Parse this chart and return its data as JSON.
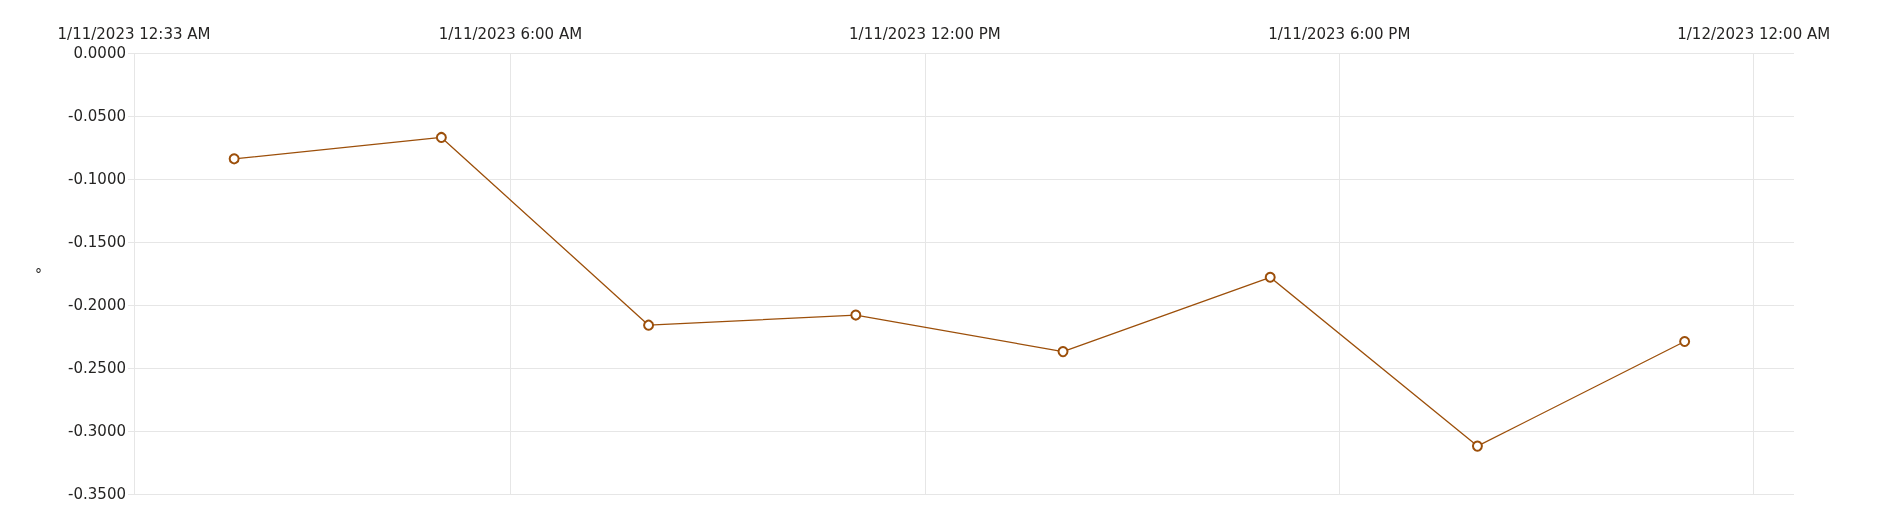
{
  "chart_data": {
    "type": "line",
    "ylabel": "°",
    "x": [
      "2023-01-11T02:00",
      "2023-01-11T05:00",
      "2023-01-11T08:00",
      "2023-01-11T11:00",
      "2023-01-11T14:00",
      "2023-01-11T17:00",
      "2023-01-11T20:00",
      "2023-01-11T23:00"
    ],
    "series": [
      {
        "color": "#9c4f0a",
        "values": [
          -0.084,
          -0.067,
          -0.216,
          -0.208,
          -0.237,
          -0.178,
          -0.312,
          -0.229
        ]
      }
    ],
    "xlim": [
      "2023-01-11T00:33",
      "2023-01-12T00:35"
    ],
    "xticks": [
      {
        "value": "2023-01-11T00:33",
        "label": "1/11/2023 12:33 AM"
      },
      {
        "value": "2023-01-11T06:00",
        "label": "1/11/2023 6:00 AM"
      },
      {
        "value": "2023-01-11T12:00",
        "label": "1/11/2023 12:00 PM"
      },
      {
        "value": "2023-01-11T18:00",
        "label": "1/11/2023 6:00 PM"
      },
      {
        "value": "2023-01-12T00:00",
        "label": "1/12/2023 12:00 AM"
      }
    ],
    "ylim": [
      -0.35,
      0
    ],
    "yticks": [
      {
        "value": 0,
        "label": "0.0000"
      },
      {
        "value": -0.05,
        "label": "-0.0500"
      },
      {
        "value": -0.1,
        "label": "-0.1000"
      },
      {
        "value": -0.15,
        "label": "-0.1500"
      },
      {
        "value": -0.2,
        "label": "-0.2000"
      },
      {
        "value": -0.25,
        "label": "-0.2500"
      },
      {
        "value": -0.3,
        "label": "-0.3000"
      },
      {
        "value": -0.35,
        "label": "-0.3500"
      }
    ],
    "grid": true,
    "marker": "circle",
    "line_style": "solid"
  }
}
